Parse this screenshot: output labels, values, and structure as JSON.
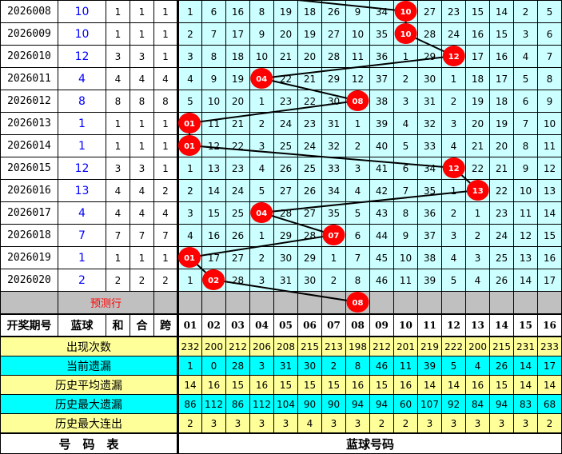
{
  "colors": {
    "grid_bg": "#ccffff",
    "ball": "#ff0000",
    "stat_yellow": "#ffff99",
    "stat_cyan": "#00ffff",
    "predict_bg": "#c0c0c0",
    "blue_text": "#0000ff"
  },
  "rows": [
    {
      "period": "2026008",
      "blue": "10",
      "he": "1",
      "heshu": "1",
      "kua": "1",
      "hit": 10,
      "cells": [
        "1",
        "6",
        "16",
        "8",
        "19",
        "18",
        "26",
        "9",
        "34",
        "10",
        "27",
        "23",
        "15",
        "14",
        "2",
        "5"
      ]
    },
    {
      "period": "2026009",
      "blue": "10",
      "he": "1",
      "heshu": "1",
      "kua": "1",
      "hit": 10,
      "cells": [
        "2",
        "7",
        "17",
        "9",
        "20",
        "19",
        "27",
        "10",
        "35",
        "10",
        "28",
        "24",
        "16",
        "15",
        "3",
        "6"
      ]
    },
    {
      "period": "2026010",
      "blue": "12",
      "he": "3",
      "heshu": "3",
      "kua": "1",
      "hit": 12,
      "cells": [
        "3",
        "8",
        "18",
        "10",
        "21",
        "20",
        "28",
        "11",
        "36",
        "1",
        "29",
        "12",
        "17",
        "16",
        "4",
        "7"
      ]
    },
    {
      "period": "2026011",
      "blue": "4",
      "he": "4",
      "heshu": "4",
      "kua": "4",
      "hit": 4,
      "cells": [
        "4",
        "9",
        "19",
        "04",
        "22",
        "21",
        "29",
        "12",
        "37",
        "2",
        "30",
        "1",
        "18",
        "17",
        "5",
        "8"
      ]
    },
    {
      "period": "2026012",
      "blue": "8",
      "he": "8",
      "heshu": "8",
      "kua": "8",
      "hit": 8,
      "cells": [
        "5",
        "10",
        "20",
        "1",
        "23",
        "22",
        "30",
        "08",
        "38",
        "3",
        "31",
        "2",
        "19",
        "18",
        "6",
        "9"
      ]
    },
    {
      "period": "2026013",
      "blue": "1",
      "he": "1",
      "heshu": "1",
      "kua": "1",
      "hit": 1,
      "cells": [
        "01",
        "11",
        "21",
        "2",
        "24",
        "23",
        "31",
        "1",
        "39",
        "4",
        "32",
        "3",
        "20",
        "19",
        "7",
        "10"
      ]
    },
    {
      "period": "2026014",
      "blue": "1",
      "he": "1",
      "heshu": "1",
      "kua": "1",
      "hit": 1,
      "cells": [
        "01",
        "12",
        "22",
        "3",
        "25",
        "24",
        "32",
        "2",
        "40",
        "5",
        "33",
        "4",
        "21",
        "20",
        "8",
        "11"
      ]
    },
    {
      "period": "2026015",
      "blue": "12",
      "he": "3",
      "heshu": "3",
      "kua": "1",
      "hit": 12,
      "cells": [
        "1",
        "13",
        "23",
        "4",
        "26",
        "25",
        "33",
        "3",
        "41",
        "6",
        "34",
        "12",
        "22",
        "21",
        "9",
        "12"
      ]
    },
    {
      "period": "2026016",
      "blue": "13",
      "he": "4",
      "heshu": "4",
      "kua": "2",
      "hit": 13,
      "cells": [
        "2",
        "14",
        "24",
        "5",
        "27",
        "26",
        "34",
        "4",
        "42",
        "7",
        "35",
        "1",
        "13",
        "22",
        "10",
        "13"
      ]
    },
    {
      "period": "2026017",
      "blue": "4",
      "he": "4",
      "heshu": "4",
      "kua": "4",
      "hit": 4,
      "cells": [
        "3",
        "15",
        "25",
        "04",
        "28",
        "27",
        "35",
        "5",
        "43",
        "8",
        "36",
        "2",
        "1",
        "23",
        "11",
        "14"
      ]
    },
    {
      "period": "2026018",
      "blue": "7",
      "he": "7",
      "heshu": "7",
      "kua": "7",
      "hit": 7,
      "cells": [
        "4",
        "16",
        "26",
        "1",
        "29",
        "28",
        "07",
        "6",
        "44",
        "9",
        "37",
        "3",
        "2",
        "24",
        "12",
        "15"
      ]
    },
    {
      "period": "2026019",
      "blue": "1",
      "he": "1",
      "heshu": "1",
      "kua": "1",
      "hit": 1,
      "cells": [
        "01",
        "17",
        "27",
        "2",
        "30",
        "29",
        "1",
        "7",
        "45",
        "10",
        "38",
        "4",
        "3",
        "25",
        "13",
        "16"
      ]
    },
    {
      "period": "2026020",
      "blue": "2",
      "he": "2",
      "heshu": "2",
      "kua": "2",
      "hit": 2,
      "cells": [
        "1",
        "02",
        "28",
        "3",
        "31",
        "30",
        "2",
        "8",
        "46",
        "11",
        "39",
        "5",
        "4",
        "26",
        "14",
        "17"
      ]
    }
  ],
  "prediction": {
    "label": "预测行",
    "hit": 8,
    "ball": "08"
  },
  "header": {
    "period": "开奖期号",
    "blue": "蓝球",
    "he": "和",
    "heshu": "合",
    "kua": "跨",
    "numbers": [
      "01",
      "02",
      "03",
      "04",
      "05",
      "06",
      "07",
      "08",
      "09",
      "10",
      "11",
      "12",
      "13",
      "14",
      "15",
      "16"
    ]
  },
  "stats": [
    {
      "label": "出现次数",
      "style": "y",
      "values": [
        "232",
        "200",
        "212",
        "206",
        "208",
        "215",
        "213",
        "198",
        "212",
        "201",
        "219",
        "222",
        "200",
        "215",
        "231",
        "233"
      ]
    },
    {
      "label": "当前遗漏",
      "style": "c",
      "values": [
        "1",
        "0",
        "28",
        "3",
        "31",
        "30",
        "2",
        "8",
        "46",
        "11",
        "39",
        "5",
        "4",
        "26",
        "14",
        "17"
      ]
    },
    {
      "label": "历史平均遗漏",
      "style": "y",
      "values": [
        "14",
        "16",
        "15",
        "16",
        "15",
        "15",
        "15",
        "16",
        "15",
        "16",
        "14",
        "14",
        "16",
        "15",
        "14",
        "14"
      ]
    },
    {
      "label": "历史最大遗漏",
      "style": "c",
      "values": [
        "86",
        "112",
        "86",
        "112",
        "104",
        "90",
        "90",
        "94",
        "94",
        "60",
        "107",
        "92",
        "84",
        "94",
        "83",
        "68"
      ]
    },
    {
      "label": "历史最大连出",
      "style": "y",
      "values": [
        "2",
        "3",
        "3",
        "3",
        "3",
        "4",
        "3",
        "3",
        "2",
        "2",
        "3",
        "3",
        "3",
        "3",
        "3",
        "2"
      ]
    }
  ],
  "footer": {
    "left": "号　码　表",
    "right": "蓝球号码"
  }
}
